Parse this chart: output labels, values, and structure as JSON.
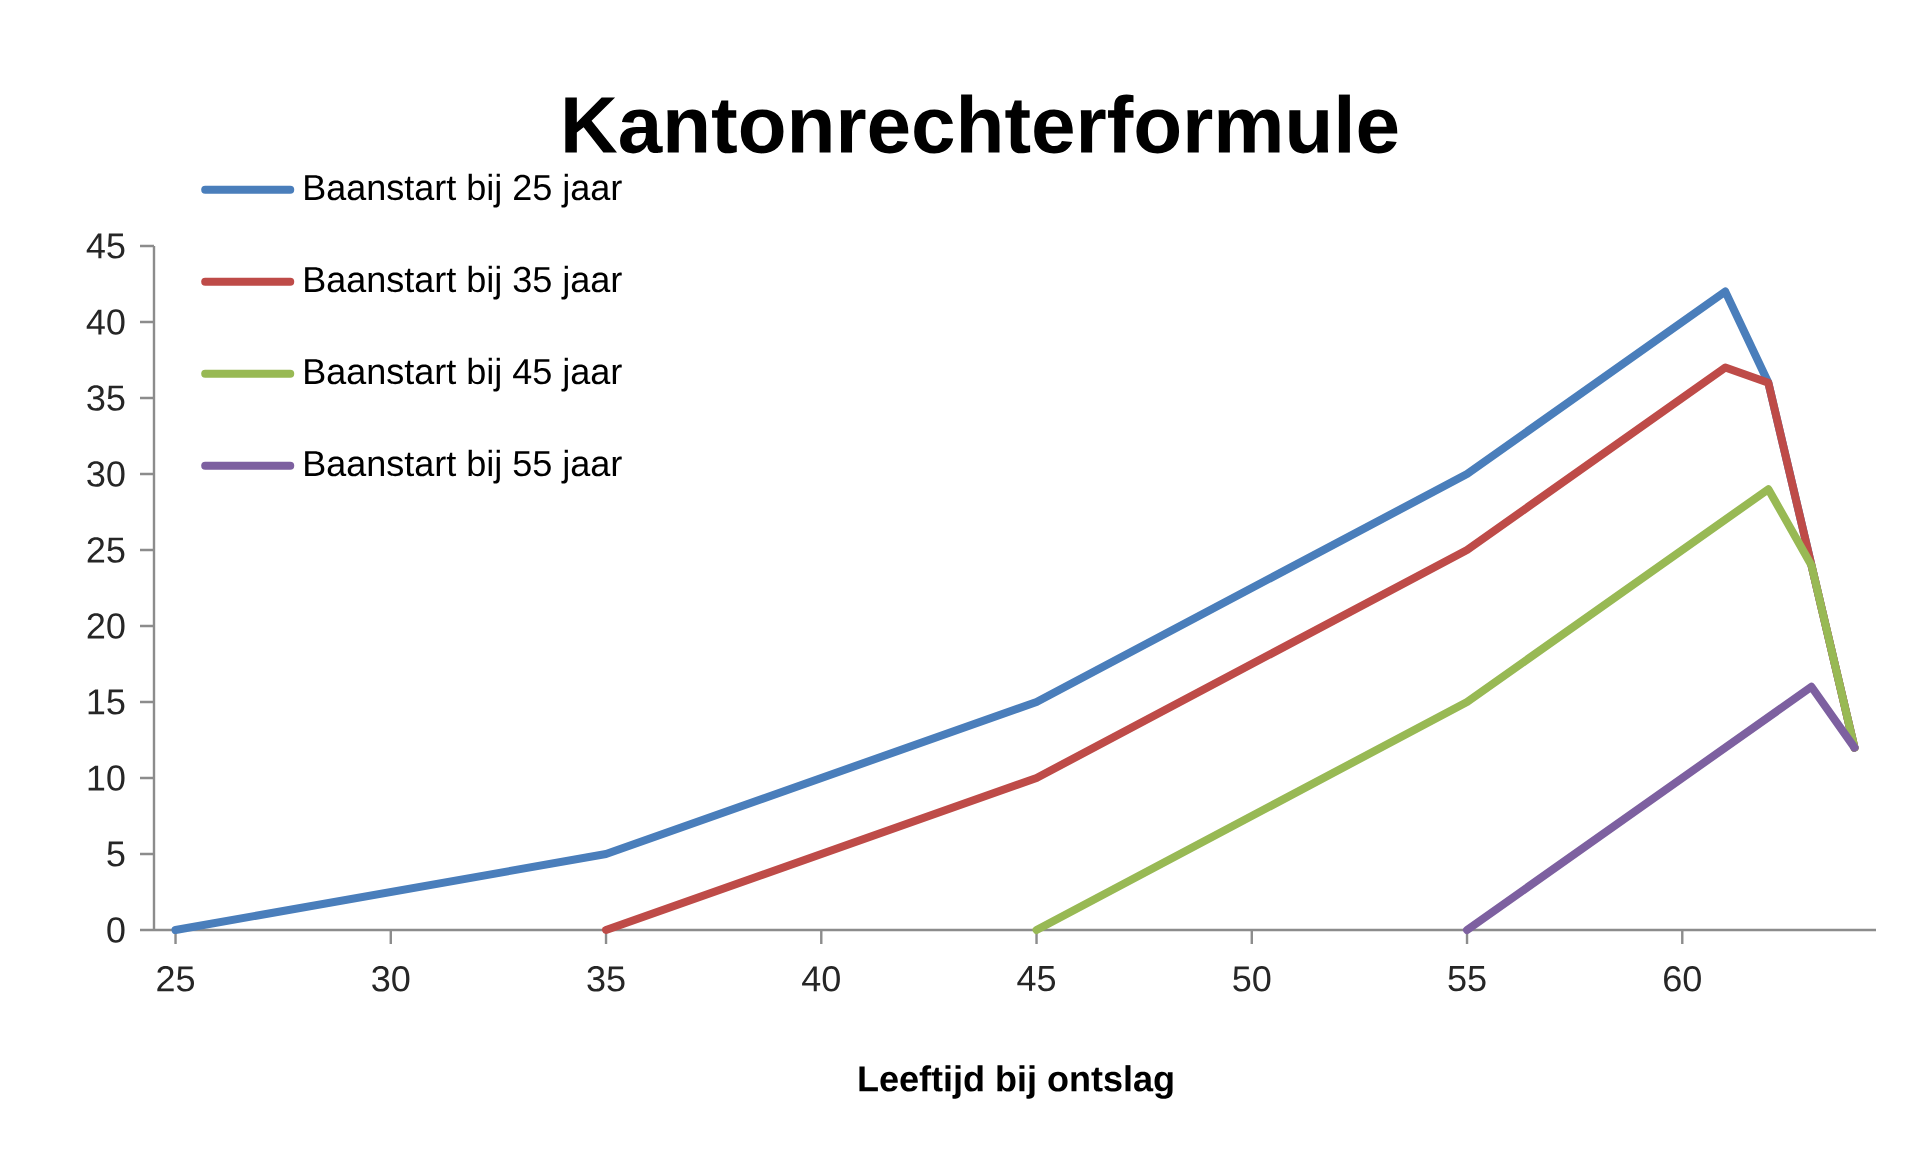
{
  "chart_data": {
    "type": "line",
    "title": "Kantonrechterformule",
    "xlabel": "Leeftijd bij ontslag",
    "xlim": [
      24.5,
      64.5
    ],
    "xticks": [
      25,
      30,
      35,
      40,
      45,
      50,
      55,
      60
    ],
    "ylim": [
      0,
      45
    ],
    "yticks": [
      0,
      5,
      10,
      15,
      20,
      25,
      30,
      35,
      40,
      45
    ],
    "grid": false,
    "legend": "top left",
    "marker": "none",
    "line_style": "solid",
    "series": [
      {
        "name": "Baanstart bij 25 jaar",
        "color": "#4a7ebb",
        "x": [
          25,
          35,
          40,
          45,
          50,
          55,
          61,
          62,
          63,
          64
        ],
        "values": [
          0,
          5,
          10,
          15,
          22.5,
          30,
          42,
          36,
          24,
          12
        ]
      },
      {
        "name": "Baanstart bij 35 jaar",
        "color": "#be4b48",
        "x": [
          35,
          40,
          45,
          50,
          55,
          61,
          62,
          63,
          64
        ],
        "values": [
          0,
          5,
          10,
          17.5,
          25,
          37,
          36,
          24,
          12
        ]
      },
      {
        "name": "Baanstart bij 45 jaar",
        "color": "#98b954",
        "x": [
          45,
          50,
          55,
          62,
          63,
          64
        ],
        "values": [
          0,
          7.5,
          15,
          29,
          24,
          12
        ]
      },
      {
        "name": "Baanstart bij 55 jaar",
        "color": "#7d60a0",
        "x": [
          55,
          63,
          64
        ],
        "values": [
          0,
          16,
          12
        ]
      }
    ]
  }
}
